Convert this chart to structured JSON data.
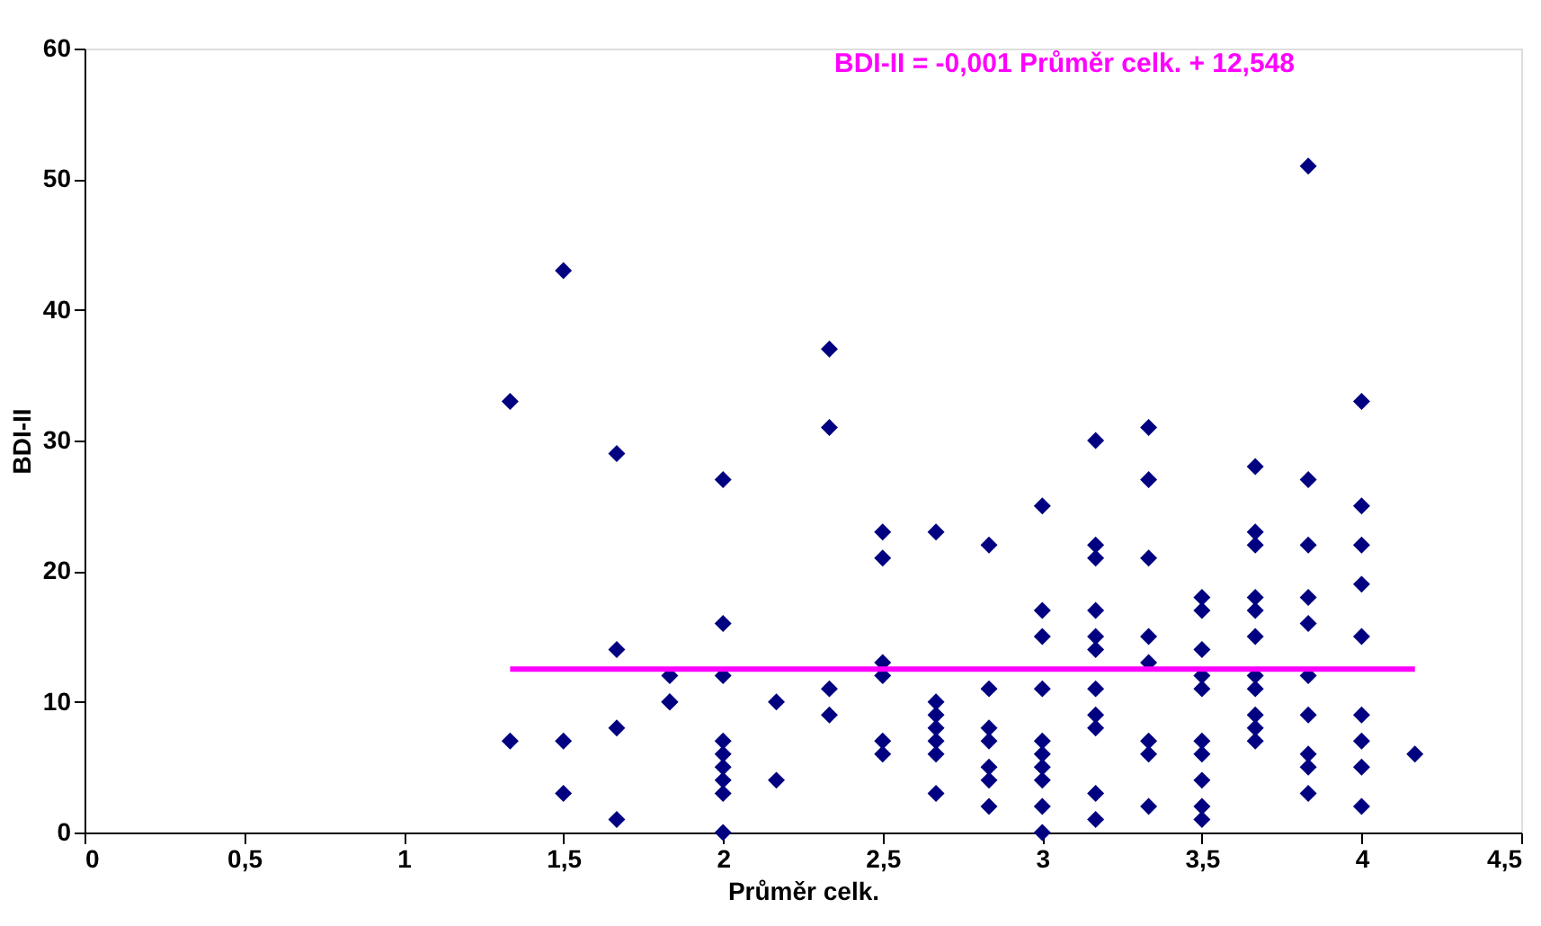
{
  "chart_data": {
    "type": "scatter",
    "xlabel": "Průměr celk.",
    "ylabel": "BDI-II",
    "xlim": [
      0,
      4.5
    ],
    "ylim": [
      0,
      60
    ],
    "xticks": [
      0,
      {
        "value": 0.5,
        "label": "0,5"
      },
      1,
      {
        "value": 1.5,
        "label": "1,5"
      },
      2,
      {
        "value": 2.5,
        "label": "2,5"
      },
      3,
      {
        "value": 3.5,
        "label": "3,5"
      },
      4,
      {
        "value": 4.5,
        "label": "4,5"
      }
    ],
    "yticks": [
      0,
      10,
      20,
      30,
      40,
      50,
      60
    ],
    "grid": false,
    "legend": false,
    "marker": "diamond",
    "annotations": [
      "BDI-II = -0,001 Průměr celk. + 12,548"
    ],
    "series": [
      {
        "color": "#000080",
        "x": [
          1.333,
          1.333,
          1.5,
          1.5,
          1.5,
          1.667,
          1.667,
          1.667,
          1.667,
          1.833,
          1.833,
          1.833,
          2,
          2,
          2,
          2,
          2,
          2,
          2,
          2,
          2,
          2.167,
          2.167,
          2.333,
          2.333,
          2.333,
          2.333,
          2.5,
          2.5,
          2.5,
          2.5,
          2.5,
          2.5,
          2.667,
          2.667,
          2.667,
          2.667,
          2.667,
          2.667,
          2.667,
          2.833,
          2.833,
          2.833,
          2.833,
          2.833,
          2.833,
          2.833,
          3,
          3,
          3,
          3,
          3,
          3,
          3,
          3,
          3,
          3,
          3.167,
          3.167,
          3.167,
          3.167,
          3.167,
          3.167,
          3.167,
          3.167,
          3.167,
          3.167,
          3.167,
          3.333,
          3.333,
          3.333,
          3.333,
          3.333,
          3.333,
          3.333,
          3.333,
          3.5,
          3.5,
          3.5,
          3.5,
          3.5,
          3.5,
          3.5,
          3.5,
          3.5,
          3.5,
          3.667,
          3.667,
          3.667,
          3.667,
          3.667,
          3.667,
          3.667,
          3.667,
          3.667,
          3.667,
          3.667,
          3.833,
          3.833,
          3.833,
          3.833,
          3.833,
          3.833,
          3.833,
          3.833,
          3.833,
          3.833,
          4,
          4,
          4,
          4,
          4,
          4,
          4,
          4,
          4,
          4.167
        ],
        "values": [
          33,
          7,
          43,
          7,
          3,
          29,
          14,
          8,
          1,
          12,
          10,
          10,
          27,
          16,
          12,
          7,
          6,
          5,
          4,
          3,
          0,
          10,
          4,
          37,
          31,
          11,
          9,
          23,
          21,
          13,
          12,
          7,
          6,
          23,
          10,
          9,
          8,
          7,
          6,
          3,
          22,
          11,
          8,
          7,
          5,
          4,
          2,
          25,
          17,
          15,
          11,
          7,
          6,
          5,
          4,
          2,
          0,
          30,
          22,
          21,
          17,
          15,
          14,
          11,
          9,
          8,
          3,
          1,
          31,
          27,
          21,
          15,
          13,
          7,
          6,
          2,
          18,
          17,
          14,
          12,
          11,
          7,
          6,
          4,
          2,
          1,
          28,
          23,
          22,
          18,
          17,
          15,
          12,
          11,
          9,
          8,
          7,
          51,
          27,
          22,
          18,
          16,
          12,
          9,
          6,
          5,
          3,
          33,
          25,
          22,
          19,
          15,
          9,
          7,
          5,
          2,
          6
        ]
      },
      {
        "color": "#ff00ff",
        "type": "line",
        "line_style": "solid",
        "marker": "none",
        "x": [
          1.333,
          4.167
        ],
        "values": [
          12.5,
          12.5
        ]
      }
    ]
  }
}
